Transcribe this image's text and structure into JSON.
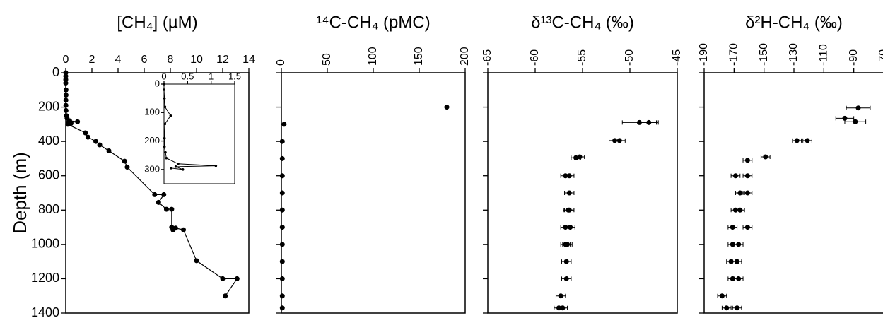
{
  "chart_data": [
    {
      "type": "line",
      "title": "[CH₄] (µM)",
      "ylabel": "Depth (m)",
      "color": "#000000",
      "y_inverted": true,
      "xlim": [
        0,
        14
      ],
      "xticks": [
        0,
        2,
        4,
        6,
        8,
        10,
        12,
        14
      ],
      "ylim": [
        0,
        1400
      ],
      "yticks": [
        0,
        200,
        400,
        600,
        800,
        1000,
        1200,
        1400
      ],
      "x": [
        0,
        0,
        0,
        0,
        0.02,
        0.02,
        0.01,
        0.01,
        0.02,
        0.05,
        0.1,
        0.3,
        0.9,
        0.2,
        0.4,
        0.15,
        1.5,
        1.7,
        2.3,
        2.6,
        3.3,
        4.5,
        4.7,
        6.8,
        7.5,
        7.1,
        7.7,
        8.1,
        8.1,
        8.2,
        8.4,
        9.0,
        10.0,
        12.0,
        13.1,
        12.2
      ],
      "y": [
        0,
        20,
        40,
        60,
        100,
        130,
        160,
        190,
        220,
        250,
        265,
        280,
        285,
        290,
        295,
        300,
        350,
        375,
        400,
        420,
        455,
        515,
        550,
        710,
        710,
        755,
        795,
        795,
        900,
        915,
        905,
        915,
        1095,
        1200,
        1200,
        1300
      ]
    },
    {
      "type": "line",
      "color": "#000000",
      "y_inverted": true,
      "xlim": [
        0,
        1.5
      ],
      "xticks": [
        0,
        0.5,
        1,
        1.5
      ],
      "ylim": [
        0,
        350
      ],
      "yticks": [
        0,
        100,
        200,
        300
      ],
      "x": [
        0,
        0,
        0.01,
        0.02,
        0.14,
        0.02,
        0.01,
        0.01,
        0.03,
        0.05,
        0.3,
        1.1,
        0.25,
        0.4,
        0.15
      ],
      "y": [
        0,
        20,
        50,
        80,
        111,
        140,
        190,
        220,
        240,
        260,
        280,
        287,
        290,
        300,
        295
      ]
    },
    {
      "type": "scatter",
      "title": "¹⁴C-CH₄ (pMC)",
      "color": "#000000",
      "y_inverted": true,
      "xlim": [
        0,
        200
      ],
      "xticks": [
        0,
        50,
        100,
        150,
        200
      ],
      "ylim": [
        0,
        1400
      ],
      "yticks": [
        0,
        200,
        400,
        600,
        800,
        1000,
        1200,
        1400
      ],
      "x": [
        180,
        3,
        1,
        1,
        1,
        1,
        1,
        1,
        1,
        1,
        1,
        1,
        1
      ],
      "y": [
        200,
        300,
        400,
        500,
        600,
        700,
        800,
        900,
        1000,
        1100,
        1200,
        1300,
        1370
      ]
    },
    {
      "type": "errorbar",
      "title": "δ¹³C-CH₄ (‰)",
      "color": "#000000",
      "y_inverted": true,
      "xlim": [
        -65,
        -45
      ],
      "xticks": [
        -65,
        -60,
        -55,
        -50,
        -45
      ],
      "ylim": [
        0,
        1400
      ],
      "yticks": [
        0,
        200,
        400,
        600,
        800,
        1000,
        1200,
        1400
      ],
      "x": [
        -49.0,
        -48.0,
        -51.6,
        -51.1,
        -55.7,
        -55.3,
        -56.8,
        -56.4,
        -56.4,
        -56.5,
        -56.4,
        -56.8,
        -56.3,
        -56.8,
        -56.6,
        -56.7,
        -56.7,
        -57.3,
        -57.5,
        -57.1
      ],
      "xerr": [
        1.8,
        1.0,
        0.6,
        0.6,
        0.5,
        0.5,
        0.5,
        0.5,
        0.5,
        0.5,
        0.5,
        0.5,
        0.5,
        0.5,
        0.5,
        0.5,
        0.5,
        0.5,
        0.5,
        0.5
      ],
      "y": [
        290,
        290,
        395,
        395,
        495,
        490,
        600,
        600,
        700,
        800,
        800,
        900,
        900,
        1000,
        1000,
        1100,
        1200,
        1300,
        1370,
        1370
      ]
    },
    {
      "type": "errorbar",
      "title": "δ²H-CH₄ (‰)",
      "color": "#000000",
      "y_inverted": true,
      "xlim": [
        -190,
        -70
      ],
      "xticks": [
        -190,
        -170,
        -150,
        -130,
        -110,
        -90,
        -70
      ],
      "ylim": [
        0,
        1400
      ],
      "yticks": [
        0,
        200,
        400,
        600,
        800,
        1000,
        1200,
        1400
      ],
      "x": [
        -87,
        -96,
        -89,
        -128,
        -121,
        -149,
        -161,
        -169,
        -161,
        -166,
        -161,
        -169,
        -166,
        -171,
        -161,
        -171,
        -167,
        -172,
        -168,
        -171,
        -167,
        -178,
        -175,
        -168
      ],
      "xerr": [
        8,
        6,
        7,
        3,
        3,
        3,
        3,
        3,
        3,
        3,
        3,
        3,
        3,
        3,
        3,
        3,
        3,
        3,
        3,
        3,
        3,
        3,
        3,
        3
      ],
      "y": [
        205,
        265,
        285,
        395,
        395,
        490,
        510,
        600,
        600,
        700,
        700,
        800,
        800,
        900,
        900,
        1000,
        1000,
        1100,
        1100,
        1200,
        1200,
        1300,
        1370,
        1370
      ]
    }
  ]
}
